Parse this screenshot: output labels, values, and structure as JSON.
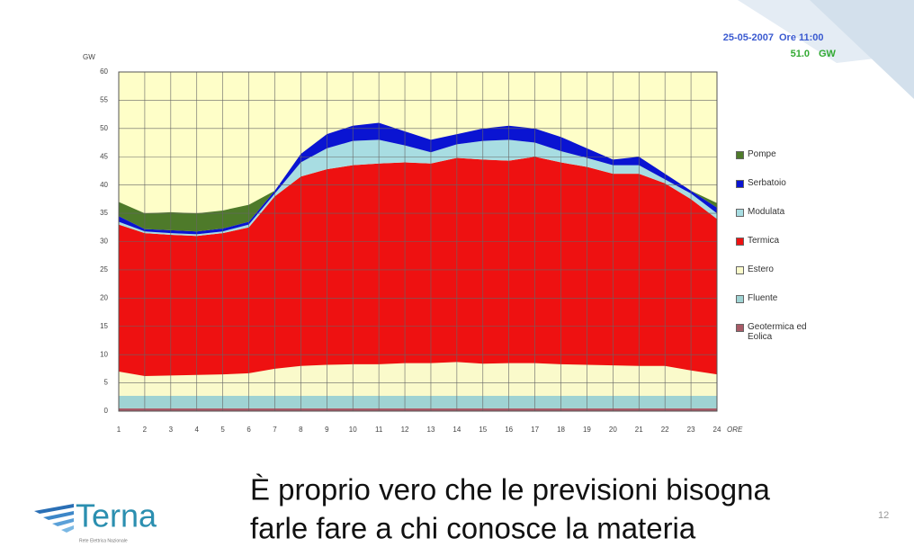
{
  "header": {
    "date": "25-05-2007",
    "time": "Ore 11:00",
    "load": "51.0",
    "load_unit": "GW"
  },
  "chart_data": {
    "type": "stacked_area",
    "ylabel": "GW",
    "xlabel": "ORE",
    "categories": [
      "1",
      "2",
      "3",
      "4",
      "5",
      "6",
      "7",
      "8",
      "9",
      "10",
      "11",
      "12",
      "13",
      "14",
      "15",
      "16",
      "17",
      "18",
      "19",
      "20",
      "21",
      "22",
      "23",
      "24"
    ],
    "ylim": [
      0,
      60
    ],
    "yticks": [
      0,
      5,
      10,
      15,
      20,
      25,
      30,
      35,
      40,
      45,
      50,
      55,
      60
    ],
    "grid": true,
    "series": [
      {
        "name": "Pompe",
        "color": "#4e7a2a",
        "values": [
          2.5,
          2.8,
          3.2,
          3.2,
          3.2,
          3.0,
          0,
          0,
          0,
          0,
          0,
          0,
          0,
          0,
          0,
          0,
          0,
          0,
          0,
          0,
          0,
          0,
          0,
          0.8
        ]
      },
      {
        "name": "Serbatoio",
        "color": "#0a14d2",
        "values": [
          1,
          0.4,
          0.5,
          0.5,
          0.5,
          0.5,
          0.5,
          1.5,
          2.5,
          2.7,
          3,
          2.5,
          2.2,
          1.8,
          2.2,
          2.5,
          2.5,
          2.5,
          1.7,
          1,
          1.5,
          1,
          0.5,
          1
        ]
      },
      {
        "name": "Modulata",
        "color": "#a8dde2",
        "values": [
          0.5,
          0.3,
          0.3,
          0.3,
          0.3,
          0.5,
          0.5,
          2.5,
          3.7,
          4.3,
          4.2,
          3,
          2,
          2.4,
          3.3,
          3.7,
          2.5,
          2,
          1.6,
          1.5,
          1.5,
          0.7,
          1,
          1
        ]
      },
      {
        "name": "Termica",
        "color": "#ee1111",
        "values": [
          26,
          25.3,
          24.9,
          24.6,
          25,
          25.8,
          30.5,
          33.5,
          34.6,
          35.2,
          35.5,
          35.5,
          35.3,
          36.1,
          36.1,
          35.8,
          36.5,
          35.7,
          35,
          33.9,
          34,
          32.3,
          30.3,
          27.5
        ]
      },
      {
        "name": "Estero",
        "color": "#fafacb",
        "values": [
          4.3,
          3.5,
          3.6,
          3.7,
          3.8,
          4.0,
          4.8,
          5.3,
          5.5,
          5.6,
          5.6,
          5.8,
          5.8,
          6.0,
          5.7,
          5.8,
          5.8,
          5.6,
          5.5,
          5.4,
          5.3,
          5.3,
          4.5,
          3.8
        ]
      },
      {
        "name": "Fluente",
        "color": "#9fd3d3",
        "values": [
          2.2,
          2.2,
          2.2,
          2.2,
          2.2,
          2.2,
          2.2,
          2.2,
          2.2,
          2.2,
          2.2,
          2.2,
          2.2,
          2.2,
          2.2,
          2.2,
          2.2,
          2.2,
          2.2,
          2.2,
          2.2,
          2.2,
          2.2,
          2.2
        ]
      },
      {
        "name": "Geotermica ed Eolica",
        "color": "#a85a66",
        "values": [
          0.5,
          0.5,
          0.5,
          0.5,
          0.5,
          0.5,
          0.5,
          0.5,
          0.5,
          0.5,
          0.5,
          0.5,
          0.5,
          0.5,
          0.5,
          0.5,
          0.5,
          0.5,
          0.5,
          0.5,
          0.5,
          0.5,
          0.5,
          0.5
        ]
      }
    ]
  },
  "caption": [
    "È proprio vero che le previsioni bisogna",
    "farle fare a chi conosce la materia"
  ],
  "logo": {
    "name": "Terna",
    "tagline": "Rete Elettrica Nazionale"
  },
  "page_number": "12"
}
